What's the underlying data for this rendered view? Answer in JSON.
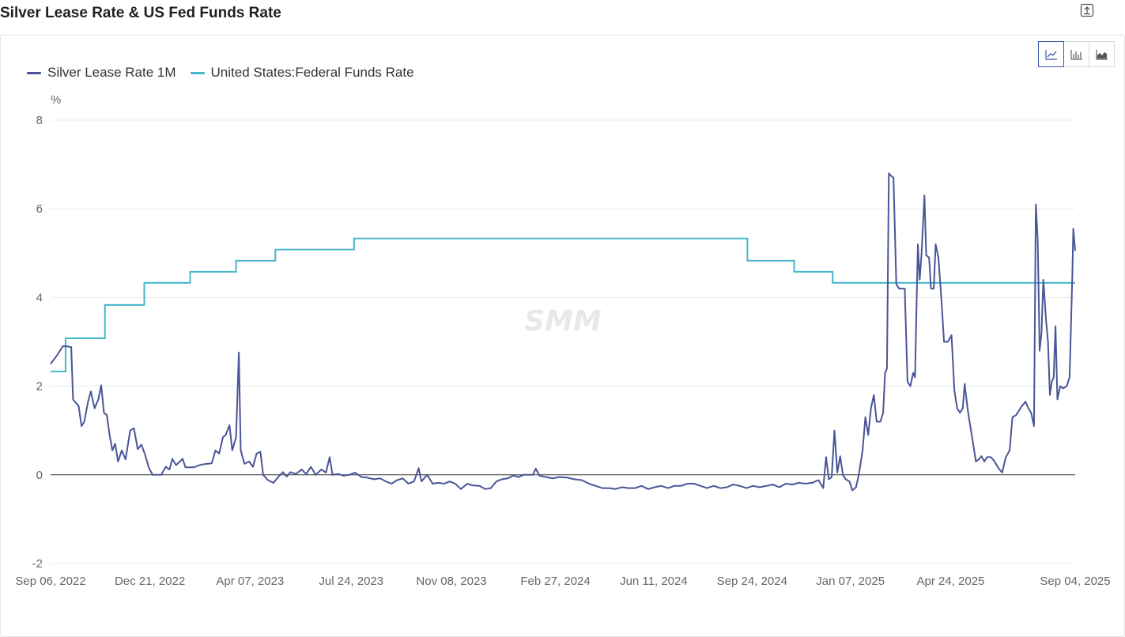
{
  "header": {
    "title": "Silver Lease Rate & US Fed Funds Rate",
    "export_icon": "export-icon"
  },
  "chart_switcher": {
    "buttons": [
      {
        "icon": "line-chart-icon",
        "active": true
      },
      {
        "icon": "bar-chart-icon",
        "active": false
      },
      {
        "icon": "area-chart-icon",
        "active": false
      }
    ]
  },
  "watermark": "SMM",
  "colors": {
    "silver": "#4a5597",
    "fed": "#45b6cc",
    "grid": "#ebebeb",
    "zero_line": "#333333"
  },
  "chart_data": {
    "type": "line",
    "yunit": "%",
    "ylim": [
      -2,
      8
    ],
    "yticks": [
      "-2",
      "0",
      "2",
      "4",
      "6",
      "8"
    ],
    "xlim": [
      "2022-09-06",
      "2025-09-04"
    ],
    "xticks": [
      {
        "label": "Sep 06, 2022",
        "date": "2022-09-06"
      },
      {
        "label": "Dec 21, 2022",
        "date": "2022-12-21"
      },
      {
        "label": "Apr 07, 2023",
        "date": "2023-04-07"
      },
      {
        "label": "Jul 24, 2023",
        "date": "2023-07-24"
      },
      {
        "label": "Nov 08, 2023",
        "date": "2023-11-08"
      },
      {
        "label": "Feb 27, 2024",
        "date": "2024-02-27"
      },
      {
        "label": "Jun 11, 2024",
        "date": "2024-06-11"
      },
      {
        "label": "Sep 24, 2024",
        "date": "2024-09-24"
      },
      {
        "label": "Jan 07, 2025",
        "date": "2025-01-07"
      },
      {
        "label": "Apr 24, 2025",
        "date": "2025-04-24"
      },
      {
        "label": "Sep 04, 2025",
        "date": "2025-09-04"
      }
    ],
    "grid": true,
    "legend_position": "top-left",
    "series": [
      {
        "name": "Silver Lease Rate 1M",
        "color": "#4a5597",
        "points": [
          [
            "2022-09-06",
            2.5
          ],
          [
            "2022-09-13",
            2.7
          ],
          [
            "2022-09-19",
            2.9
          ],
          [
            "2022-09-23",
            2.9
          ],
          [
            "2022-09-28",
            2.88
          ],
          [
            "2022-09-30",
            1.7
          ],
          [
            "2022-10-06",
            1.55
          ],
          [
            "2022-10-09",
            1.1
          ],
          [
            "2022-10-12",
            1.2
          ],
          [
            "2022-10-16",
            1.65
          ],
          [
            "2022-10-19",
            1.88
          ],
          [
            "2022-10-23",
            1.5
          ],
          [
            "2022-10-27",
            1.7
          ],
          [
            "2022-10-30",
            2.02
          ],
          [
            "2022-11-02",
            1.4
          ],
          [
            "2022-11-05",
            1.35
          ],
          [
            "2022-11-08",
            0.9
          ],
          [
            "2022-11-11",
            0.55
          ],
          [
            "2022-11-14",
            0.7
          ],
          [
            "2022-11-17",
            0.3
          ],
          [
            "2022-11-21",
            0.55
          ],
          [
            "2022-11-25",
            0.35
          ],
          [
            "2022-11-30",
            1.0
          ],
          [
            "2022-12-04",
            1.05
          ],
          [
            "2022-12-08",
            0.58
          ],
          [
            "2022-12-12",
            0.68
          ],
          [
            "2022-12-16",
            0.45
          ],
          [
            "2022-12-20",
            0.15
          ],
          [
            "2022-12-24",
            0.0
          ],
          [
            "2023-01-02",
            0.0
          ],
          [
            "2023-01-07",
            0.18
          ],
          [
            "2023-01-11",
            0.12
          ],
          [
            "2023-01-14",
            0.36
          ],
          [
            "2023-01-18",
            0.22
          ],
          [
            "2023-01-22",
            0.3
          ],
          [
            "2023-01-25",
            0.36
          ],
          [
            "2023-01-28",
            0.17
          ],
          [
            "2023-02-06",
            0.17
          ],
          [
            "2023-02-12",
            0.22
          ],
          [
            "2023-02-17",
            0.24
          ],
          [
            "2023-02-25",
            0.26
          ],
          [
            "2023-03-01",
            0.55
          ],
          [
            "2023-03-05",
            0.48
          ],
          [
            "2023-03-09",
            0.85
          ],
          [
            "2023-03-12",
            0.9
          ],
          [
            "2023-03-16",
            1.12
          ],
          [
            "2023-03-19",
            0.55
          ],
          [
            "2023-03-23",
            0.85
          ],
          [
            "2023-03-26",
            2.76
          ],
          [
            "2023-03-28",
            0.55
          ],
          [
            "2023-04-01",
            0.25
          ],
          [
            "2023-04-06",
            0.3
          ],
          [
            "2023-04-10",
            0.18
          ],
          [
            "2023-04-14",
            0.48
          ],
          [
            "2023-04-18",
            0.52
          ],
          [
            "2023-04-21",
            0.0
          ],
          [
            "2023-04-26",
            -0.12
          ],
          [
            "2023-05-02",
            -0.18
          ],
          [
            "2023-05-07",
            -0.05
          ],
          [
            "2023-05-12",
            0.06
          ],
          [
            "2023-05-16",
            -0.04
          ],
          [
            "2023-05-20",
            0.06
          ],
          [
            "2023-05-26",
            0.02
          ],
          [
            "2023-06-01",
            0.12
          ],
          [
            "2023-06-06",
            0.02
          ],
          [
            "2023-06-11",
            0.18
          ],
          [
            "2023-06-16",
            0.0
          ],
          [
            "2023-06-22",
            0.12
          ],
          [
            "2023-06-27",
            0.05
          ],
          [
            "2023-07-01",
            0.4
          ],
          [
            "2023-07-04",
            0.0
          ],
          [
            "2023-07-10",
            0.02
          ],
          [
            "2023-07-16",
            -0.02
          ],
          [
            "2023-07-22",
            0.0
          ],
          [
            "2023-07-28",
            0.05
          ],
          [
            "2023-08-04",
            -0.05
          ],
          [
            "2023-08-10",
            -0.06
          ],
          [
            "2023-08-17",
            -0.1
          ],
          [
            "2023-08-24",
            -0.08
          ],
          [
            "2023-08-30",
            -0.15
          ],
          [
            "2023-09-05",
            -0.2
          ],
          [
            "2023-09-11",
            -0.12
          ],
          [
            "2023-09-17",
            -0.08
          ],
          [
            "2023-09-23",
            -0.2
          ],
          [
            "2023-09-29",
            -0.15
          ],
          [
            "2023-10-04",
            0.15
          ],
          [
            "2023-10-07",
            -0.15
          ],
          [
            "2023-10-13",
            0.0
          ],
          [
            "2023-10-19",
            -0.2
          ],
          [
            "2023-10-25",
            -0.18
          ],
          [
            "2023-10-31",
            -0.2
          ],
          [
            "2023-11-06",
            -0.15
          ],
          [
            "2023-11-12",
            -0.2
          ],
          [
            "2023-11-18",
            -0.32
          ],
          [
            "2023-11-25",
            -0.2
          ],
          [
            "2023-12-01",
            -0.24
          ],
          [
            "2023-12-08",
            -0.25
          ],
          [
            "2023-12-14",
            -0.32
          ],
          [
            "2023-12-20",
            -0.3
          ],
          [
            "2023-12-26",
            -0.15
          ],
          [
            "2024-01-01",
            -0.1
          ],
          [
            "2024-01-07",
            -0.08
          ],
          [
            "2024-01-13",
            -0.02
          ],
          [
            "2024-01-19",
            -0.05
          ],
          [
            "2024-01-24",
            0.0
          ],
          [
            "2024-01-29",
            0.0
          ],
          [
            "2024-02-03",
            0.0
          ],
          [
            "2024-02-06",
            0.14
          ],
          [
            "2024-02-10",
            -0.02
          ],
          [
            "2024-02-17",
            -0.05
          ],
          [
            "2024-02-24",
            -0.08
          ],
          [
            "2024-03-02",
            -0.05
          ],
          [
            "2024-03-10",
            -0.06
          ],
          [
            "2024-03-18",
            -0.1
          ],
          [
            "2024-03-26",
            -0.12
          ],
          [
            "2024-04-03",
            -0.2
          ],
          [
            "2024-04-10",
            -0.25
          ],
          [
            "2024-04-17",
            -0.3
          ],
          [
            "2024-04-24",
            -0.3
          ],
          [
            "2024-05-01",
            -0.32
          ],
          [
            "2024-05-08",
            -0.28
          ],
          [
            "2024-05-15",
            -0.3
          ],
          [
            "2024-05-22",
            -0.3
          ],
          [
            "2024-05-29",
            -0.25
          ],
          [
            "2024-06-05",
            -0.32
          ],
          [
            "2024-06-12",
            -0.28
          ],
          [
            "2024-06-19",
            -0.25
          ],
          [
            "2024-06-26",
            -0.3
          ],
          [
            "2024-07-03",
            -0.25
          ],
          [
            "2024-07-10",
            -0.25
          ],
          [
            "2024-07-17",
            -0.2
          ],
          [
            "2024-07-24",
            -0.2
          ],
          [
            "2024-07-31",
            -0.25
          ],
          [
            "2024-08-07",
            -0.3
          ],
          [
            "2024-08-14",
            -0.25
          ],
          [
            "2024-08-21",
            -0.3
          ],
          [
            "2024-08-28",
            -0.28
          ],
          [
            "2024-09-04",
            -0.22
          ],
          [
            "2024-09-11",
            -0.25
          ],
          [
            "2024-09-18",
            -0.3
          ],
          [
            "2024-09-25",
            -0.25
          ],
          [
            "2024-10-02",
            -0.28
          ],
          [
            "2024-10-09",
            -0.25
          ],
          [
            "2024-10-16",
            -0.22
          ],
          [
            "2024-10-23",
            -0.28
          ],
          [
            "2024-10-30",
            -0.2
          ],
          [
            "2024-11-06",
            -0.22
          ],
          [
            "2024-11-13",
            -0.18
          ],
          [
            "2024-11-20",
            -0.2
          ],
          [
            "2024-11-27",
            -0.18
          ],
          [
            "2024-12-04",
            -0.12
          ],
          [
            "2024-12-09",
            -0.3
          ],
          [
            "2024-12-12",
            0.4
          ],
          [
            "2024-12-15",
            -0.1
          ],
          [
            "2024-12-18",
            -0.05
          ],
          [
            "2024-12-21",
            1.0
          ],
          [
            "2024-12-24",
            0.05
          ],
          [
            "2024-12-27",
            0.42
          ],
          [
            "2024-12-30",
            0.0
          ],
          [
            "2025-01-02",
            -0.1
          ],
          [
            "2025-01-06",
            -0.15
          ],
          [
            "2025-01-09",
            -0.35
          ],
          [
            "2025-01-13",
            -0.28
          ],
          [
            "2025-01-16",
            0.0
          ],
          [
            "2025-01-20",
            0.55
          ],
          [
            "2025-01-23",
            1.3
          ],
          [
            "2025-01-26",
            0.9
          ],
          [
            "2025-01-29",
            1.5
          ],
          [
            "2025-02-01",
            1.8
          ],
          [
            "2025-02-04",
            1.2
          ],
          [
            "2025-02-08",
            1.2
          ],
          [
            "2025-02-11",
            1.4
          ],
          [
            "2025-02-13",
            2.3
          ],
          [
            "2025-02-15",
            2.4
          ],
          [
            "2025-02-17",
            6.8
          ],
          [
            "2025-02-19",
            6.75
          ],
          [
            "2025-02-22",
            6.7
          ],
          [
            "2025-02-25",
            4.3
          ],
          [
            "2025-02-28",
            4.2
          ],
          [
            "2025-03-03",
            4.2
          ],
          [
            "2025-03-06",
            4.2
          ],
          [
            "2025-03-09",
            2.1
          ],
          [
            "2025-03-12",
            2.0
          ],
          [
            "2025-03-15",
            2.3
          ],
          [
            "2025-03-17",
            2.2
          ],
          [
            "2025-03-20",
            5.2
          ],
          [
            "2025-03-22",
            4.4
          ],
          [
            "2025-03-24",
            5.0
          ],
          [
            "2025-03-27",
            6.3
          ],
          [
            "2025-03-29",
            4.95
          ],
          [
            "2025-04-01",
            4.9
          ],
          [
            "2025-04-03",
            4.2
          ],
          [
            "2025-04-06",
            4.2
          ],
          [
            "2025-04-08",
            5.2
          ],
          [
            "2025-04-11",
            4.9
          ],
          [
            "2025-04-14",
            4.0
          ],
          [
            "2025-04-17",
            3.0
          ],
          [
            "2025-04-21",
            3.0
          ],
          [
            "2025-04-25",
            3.15
          ],
          [
            "2025-04-28",
            1.9
          ],
          [
            "2025-05-01",
            1.5
          ],
          [
            "2025-05-04",
            1.4
          ],
          [
            "2025-05-07",
            1.5
          ],
          [
            "2025-05-09",
            2.05
          ],
          [
            "2025-05-12",
            1.5
          ],
          [
            "2025-05-15",
            1.1
          ],
          [
            "2025-05-18",
            0.7
          ],
          [
            "2025-05-21",
            0.3
          ],
          [
            "2025-05-24",
            0.35
          ],
          [
            "2025-05-27",
            0.42
          ],
          [
            "2025-05-30",
            0.3
          ],
          [
            "2025-06-02",
            0.4
          ],
          [
            "2025-06-06",
            0.4
          ],
          [
            "2025-06-10",
            0.3
          ],
          [
            "2025-06-14",
            0.15
          ],
          [
            "2025-06-18",
            0.05
          ],
          [
            "2025-06-22",
            0.4
          ],
          [
            "2025-06-26",
            0.55
          ],
          [
            "2025-06-29",
            1.3
          ],
          [
            "2025-07-03",
            1.35
          ],
          [
            "2025-07-06",
            1.45
          ],
          [
            "2025-07-09",
            1.55
          ],
          [
            "2025-07-13",
            1.65
          ],
          [
            "2025-07-16",
            1.5
          ],
          [
            "2025-07-19",
            1.4
          ],
          [
            "2025-07-22",
            1.1
          ],
          [
            "2025-07-24",
            6.1
          ],
          [
            "2025-07-26",
            5.3
          ],
          [
            "2025-07-28",
            2.8
          ],
          [
            "2025-07-30",
            3.2
          ],
          [
            "2025-08-01",
            4.4
          ],
          [
            "2025-08-04",
            3.45
          ],
          [
            "2025-08-06",
            3.0
          ],
          [
            "2025-08-08",
            1.8
          ],
          [
            "2025-08-10",
            2.1
          ],
          [
            "2025-08-12",
            2.2
          ],
          [
            "2025-08-14",
            3.35
          ],
          [
            "2025-08-16",
            1.7
          ],
          [
            "2025-08-19",
            2.0
          ],
          [
            "2025-08-22",
            1.95
          ],
          [
            "2025-08-26",
            2.0
          ],
          [
            "2025-08-29",
            2.2
          ],
          [
            "2025-09-01",
            4.5
          ],
          [
            "2025-09-02",
            5.55
          ],
          [
            "2025-09-04",
            5.05
          ]
        ]
      },
      {
        "name": "United States:Federal Funds Rate",
        "color": "#45b6cc",
        "steps": [
          [
            "2022-09-06",
            2.33
          ],
          [
            "2022-09-22",
            3.08
          ],
          [
            "2022-11-03",
            3.83
          ],
          [
            "2022-12-15",
            4.33
          ],
          [
            "2023-02-02",
            4.58
          ],
          [
            "2023-03-23",
            4.83
          ],
          [
            "2023-05-04",
            5.08
          ],
          [
            "2023-07-27",
            5.33
          ],
          [
            "2024-09-19",
            4.83
          ],
          [
            "2024-11-08",
            4.58
          ],
          [
            "2024-12-19",
            4.33
          ]
        ]
      }
    ]
  }
}
